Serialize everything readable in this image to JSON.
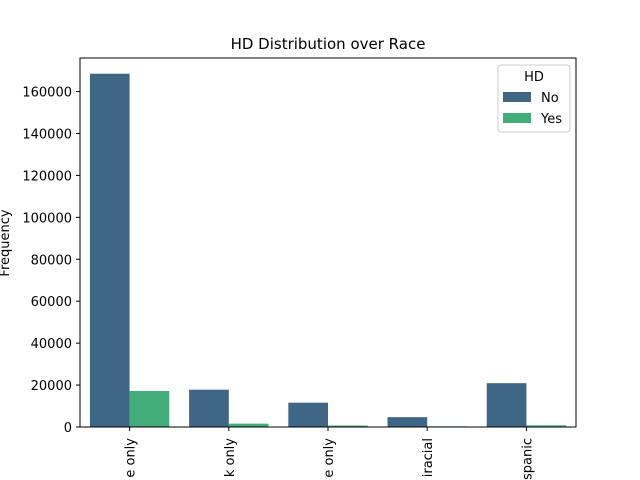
{
  "chart_data": {
    "type": "bar",
    "title": "HD Distribution over Race",
    "xlabel": "",
    "ylabel": "Frequency",
    "categories": [
      "e only",
      "k only",
      "e only",
      "iracial",
      "spanic"
    ],
    "series": [
      {
        "name": "No",
        "color": "#3e6786",
        "values": [
          168500,
          17800,
          11600,
          4700,
          20900
        ]
      },
      {
        "name": "Yes",
        "color": "#43ad79",
        "values": [
          17200,
          1600,
          700,
          300,
          800
        ]
      }
    ],
    "ylim": [
      0,
      176000
    ],
    "yticks": [
      0,
      20000,
      40000,
      60000,
      80000,
      100000,
      120000,
      140000,
      160000
    ],
    "legend": {
      "title": "HD",
      "placement": "top-right"
    },
    "grid": false
  }
}
